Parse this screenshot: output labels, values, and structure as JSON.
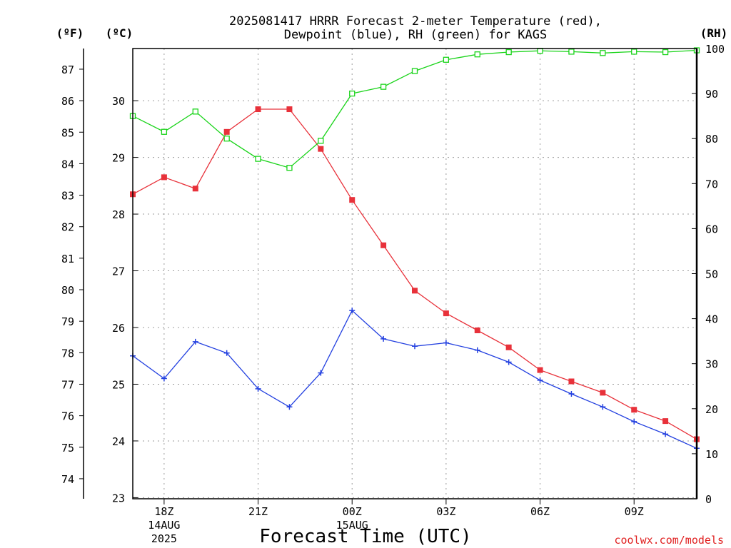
{
  "chart_data": {
    "type": "line",
    "title_line1": "2025081417 HRRR Forecast 2-meter Temperature (red),",
    "title_line2": "Dewpoint (blue), RH (green) for KAGS",
    "xlabel": "Forecast Time (UTC)",
    "credit": "coolwx.com/models",
    "unit_f": "(ºF)",
    "unit_c": "(ºC)",
    "unit_rh": "(RH)",
    "x": [
      17,
      18,
      19,
      20,
      21,
      22,
      23,
      24,
      25,
      26,
      27,
      28,
      29,
      30,
      31,
      32,
      33,
      34,
      35
    ],
    "xlim": [
      17,
      35
    ],
    "x_ticks": [
      {
        "x": 18,
        "label": "18Z",
        "sub1": "14AUG",
        "sub2": "2025"
      },
      {
        "x": 21,
        "label": "21Z",
        "sub1": "",
        "sub2": ""
      },
      {
        "x": 24,
        "label": "00Z",
        "sub1": "15AUG",
        "sub2": ""
      },
      {
        "x": 27,
        "label": "03Z",
        "sub1": "",
        "sub2": ""
      },
      {
        "x": 30,
        "label": "06Z",
        "sub1": "",
        "sub2": ""
      },
      {
        "x": 33,
        "label": "09Z",
        "sub1": "",
        "sub2": ""
      }
    ],
    "c_ticks": [
      23,
      24,
      25,
      26,
      27,
      28,
      29,
      30
    ],
    "f_ticks": [
      74,
      75,
      76,
      77,
      78,
      79,
      80,
      81,
      82,
      83,
      84,
      85,
      86,
      87
    ],
    "rh_ticks": [
      0,
      10,
      20,
      30,
      40,
      50,
      60,
      70,
      80,
      90,
      100
    ],
    "ylim_c": [
      22.98,
      30.92
    ],
    "ylim_rh": [
      0,
      100
    ],
    "grid": true,
    "series": [
      {
        "axis": "temperature",
        "color": "#e8313a",
        "marker": "filled-square",
        "values_c": [
          28.35,
          28.65,
          28.45,
          29.45,
          29.85,
          29.85,
          29.15,
          28.25,
          27.45,
          26.65,
          26.25,
          25.95,
          25.65,
          25.25,
          25.05,
          24.85,
          24.55,
          24.35,
          24.03
        ]
      },
      {
        "axis": "temperature",
        "color": "#2340e0",
        "marker": "plus",
        "values_c": [
          25.5,
          25.1,
          25.75,
          25.55,
          24.92,
          24.6,
          25.2,
          26.3,
          25.8,
          25.67,
          25.73,
          25.6,
          25.39,
          25.07,
          24.83,
          24.6,
          24.34,
          24.12,
          23.87
        ]
      },
      {
        "axis": "rh",
        "color": "#1ad41a",
        "marker": "open-square",
        "values_rh": [
          85,
          81.5,
          86,
          80,
          75.5,
          73.5,
          79.5,
          90,
          91.5,
          95,
          97.5,
          98.7,
          99.2,
          99.5,
          99.3,
          99,
          99.3,
          99.2,
          99.6
        ]
      }
    ]
  }
}
